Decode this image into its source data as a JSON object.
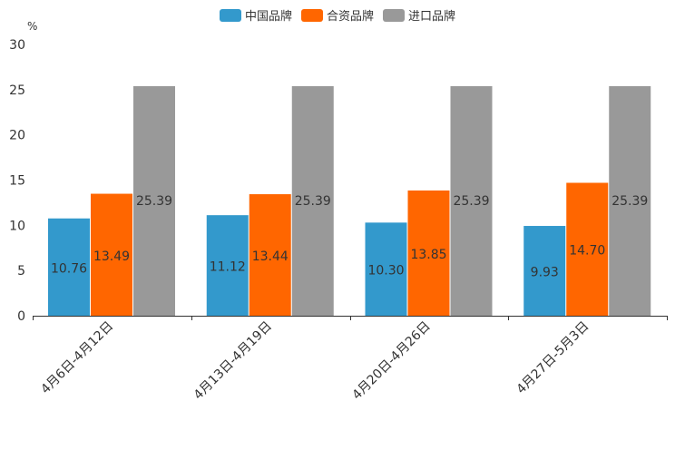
{
  "chart_data": {
    "type": "bar",
    "title": "",
    "ylabel": "%",
    "xlabel": "",
    "ylim": [
      0,
      30
    ],
    "yticks": [
      0,
      5,
      10,
      15,
      20,
      25,
      30
    ],
    "categories": [
      "4月6日-4月12日",
      "4月13日-4月19日",
      "4月20日-4月26日",
      "4月27日-5月3日"
    ],
    "series": [
      {
        "name": "中国品牌",
        "color": "#3399cc",
        "values": [
          10.76,
          11.12,
          10.3,
          9.93
        ]
      },
      {
        "name": "合资品牌",
        "color": "#ff6600",
        "values": [
          13.49,
          13.44,
          13.85,
          14.7
        ]
      },
      {
        "name": "进口品牌",
        "color": "#999999",
        "values": [
          25.39,
          25.39,
          25.39,
          25.39
        ]
      }
    ],
    "legend": "top-center",
    "grid": false
  }
}
